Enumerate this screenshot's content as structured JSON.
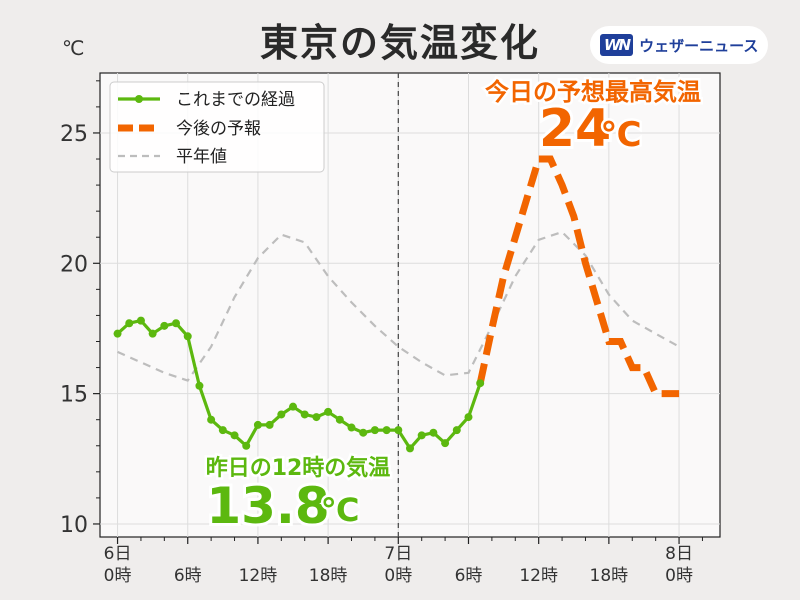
{
  "title": "東京の気温変化",
  "unit": "℃",
  "logo": {
    "mark": "WN",
    "text": "ウェザーニュース"
  },
  "legend": {
    "observed": "これまでの経過",
    "forecast": "今後の予報",
    "normal": "平年値",
    "placement": "top-left"
  },
  "annotations": {
    "max_label": "今日の予想最高気温",
    "max_value": "24",
    "max_unit": "℃",
    "yesterday_label": "昨日の12時の気温",
    "yesterday_value": "13.8",
    "yesterday_unit": "℃"
  },
  "colors": {
    "observed": "#5cb80f",
    "forecast": "#f26500",
    "normal": "#bdbdbd",
    "plot_bg": "#faf9f9",
    "grid": "#dddddd"
  },
  "chart_data": {
    "type": "line",
    "title": "東京の気温変化",
    "ylabel": "℃",
    "ylim": [
      9.5,
      27.3
    ],
    "xlim": [
      -1.5,
      51.5
    ],
    "yticks": [
      10,
      15,
      20,
      25
    ],
    "grid": true,
    "now_line_x": 24,
    "xticks": [
      {
        "x": 0,
        "line1": "6日",
        "line2": "0時"
      },
      {
        "x": 6,
        "line1": "",
        "line2": "6時"
      },
      {
        "x": 12,
        "line1": "",
        "line2": "12時"
      },
      {
        "x": 18,
        "line1": "",
        "line2": "18時"
      },
      {
        "x": 24,
        "line1": "7日",
        "line2": "0時"
      },
      {
        "x": 30,
        "line1": "",
        "line2": "6時"
      },
      {
        "x": 36,
        "line1": "",
        "line2": "12時"
      },
      {
        "x": 42,
        "line1": "",
        "line2": "18時"
      },
      {
        "x": 48,
        "line1": "8日",
        "line2": "0時"
      }
    ],
    "series": [
      {
        "name": "これまでの経過",
        "x": [
          0,
          1,
          2,
          3,
          4,
          5,
          6,
          7,
          8,
          9,
          10,
          11,
          12,
          13,
          14,
          15,
          16,
          17,
          18,
          19,
          20,
          21,
          22,
          23,
          24,
          25,
          26,
          27,
          28,
          29,
          30,
          31
        ],
        "values": [
          17.3,
          17.7,
          17.8,
          17.3,
          17.6,
          17.7,
          17.2,
          15.3,
          14.0,
          13.6,
          13.4,
          13.0,
          13.8,
          13.8,
          14.2,
          14.5,
          14.2,
          14.1,
          14.3,
          14.0,
          13.7,
          13.5,
          13.6,
          13.6,
          13.6,
          12.9,
          13.4,
          13.5,
          13.1,
          13.6,
          14.1,
          15.4
        ]
      },
      {
        "name": "今後の予報",
        "x": [
          31,
          32,
          33,
          34,
          35,
          36,
          37,
          38,
          39,
          40,
          41,
          42,
          43,
          44,
          45,
          46,
          47,
          48
        ],
        "values": [
          15.4,
          17.5,
          19.5,
          21.0,
          22.5,
          24.0,
          24.0,
          23.0,
          21.8,
          20.0,
          18.5,
          17.0,
          17.0,
          16.0,
          16.0,
          15.0,
          15.0,
          15.0
        ]
      },
      {
        "name": "平年値",
        "x": [
          0,
          2,
          4,
          6,
          8,
          10,
          12,
          14,
          16,
          18,
          20,
          22,
          24,
          26,
          28,
          30,
          32,
          34,
          36,
          38,
          40,
          42,
          44,
          46,
          48
        ],
        "values": [
          16.6,
          16.2,
          15.8,
          15.5,
          16.8,
          18.7,
          20.2,
          21.1,
          20.8,
          19.5,
          18.5,
          17.6,
          16.8,
          16.2,
          15.7,
          15.8,
          17.6,
          19.5,
          20.9,
          21.2,
          20.3,
          18.8,
          17.8,
          17.3,
          16.8
        ]
      }
    ]
  }
}
